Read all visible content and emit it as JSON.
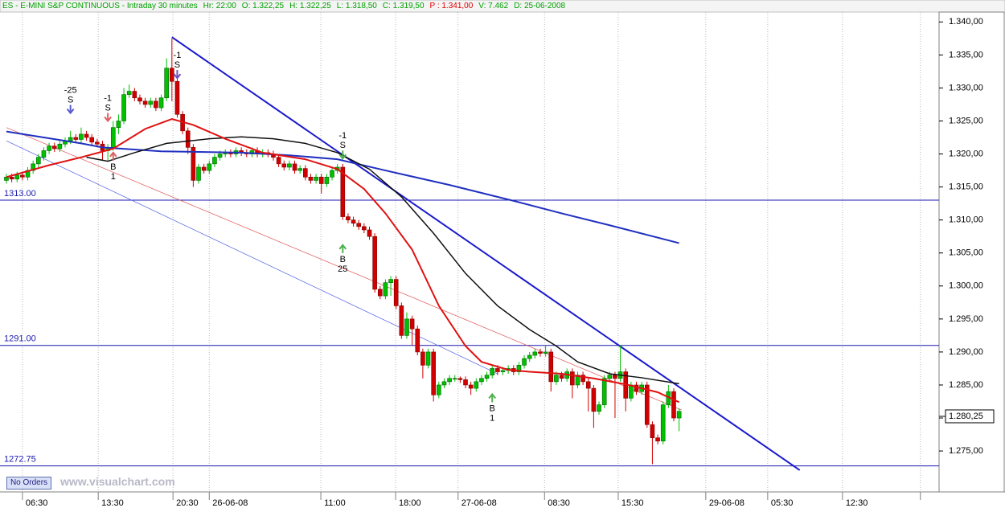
{
  "header": {
    "items": [
      "ES - E-MINI S&P CONTINUOUS - Intraday 30 minutes",
      "Hr: 22:00",
      "O: 1.322,25",
      "H: 1.322,25",
      "L: 1.318,50",
      "C: 1.319,50",
      "P : 1.341,00",
      "V: 7.462",
      "D: 25-06-2008"
    ]
  },
  "footer": {
    "button": "No Orders",
    "watermark": "www.visualchart.com"
  },
  "chart_data": {
    "type": "candlestick",
    "up_color": "#00c000",
    "down_color": "#d00000",
    "x": [
      0,
      1,
      2,
      3,
      4,
      5,
      6,
      7,
      8,
      9,
      10,
      11,
      12,
      13,
      14,
      15,
      16,
      17,
      18,
      19,
      20,
      21,
      22,
      23,
      24,
      25,
      26,
      27,
      28,
      29,
      30,
      31,
      32,
      33,
      34,
      35,
      36,
      37,
      38,
      39,
      40,
      41,
      42,
      43,
      44,
      45,
      46,
      47,
      48,
      49,
      50,
      51,
      52,
      53,
      54,
      55,
      56,
      57,
      58,
      59,
      60,
      61,
      62,
      63,
      64,
      65,
      66,
      67,
      68,
      69,
      70,
      71,
      72,
      73,
      74,
      75,
      76,
      77,
      78,
      79,
      80,
      81,
      82,
      83,
      84,
      85,
      86,
      87,
      88,
      89,
      90,
      91,
      92,
      93,
      94,
      95,
      96,
      97,
      98,
      99,
      100,
      101,
      102,
      103,
      104,
      105,
      106,
      107,
      108,
      109,
      110,
      111,
      112,
      113,
      114,
      115,
      116,
      117,
      118,
      119,
      120,
      121,
      122,
      123,
      124,
      125,
      126
    ],
    "open": [
      1316,
      1316.5,
      1316.2,
      1316.8,
      1316.5,
      1317.5,
      1318.5,
      1319.5,
      1320.5,
      1321.2,
      1320.8,
      1321.5,
      1322,
      1322.5,
      1322.2,
      1323,
      1322.5,
      1321.8,
      1321.5,
      1320.5,
      1321,
      1324,
      1325,
      1329,
      1329.5,
      1328.5,
      1328,
      1327.5,
      1328,
      1327,
      1328.5,
      1333,
      1331,
      1326,
      1323.5,
      1321,
      1316,
      1318,
      1317.5,
      1318.5,
      1319.5,
      1320,
      1320.2,
      1320,
      1320.5,
      1320.2,
      1320,
      1320.5,
      1320,
      1320.2,
      1320,
      1319.5,
      1318.5,
      1318,
      1318.5,
      1317.5,
      1317.8,
      1316.5,
      1316,
      1316.5,
      1315.5,
      1316.5,
      1317.5,
      1318,
      1310.5,
      1310,
      1309.5,
      1309,
      1308.5,
      1307.5,
      1299.5,
      1298.5,
      1300.5,
      1301,
      1297,
      1292.5,
      1295,
      1293.5,
      1290,
      1288,
      1290,
      1283.5,
      1285,
      1285.5,
      1286,
      1286,
      1285.8,
      1285,
      1284.5,
      1285.5,
      1286,
      1286.5,
      1287.5,
      1287,
      1287.2,
      1287.5,
      1287,
      1288,
      1289,
      1289.5,
      1290,
      1289.8,
      1290,
      1285.5,
      1286.5,
      1286,
      1287,
      1285,
      1286.5,
      1285.5,
      1284.5,
      1281,
      1282,
      1286,
      1286.5,
      1286,
      1287,
      1283,
      1285,
      1284,
      1285,
      1279,
      1277,
      1276.5,
      1282,
      1284,
      1280
    ],
    "high": [
      1317,
      1317,
      1317.3,
      1317.3,
      1318,
      1319,
      1320,
      1321,
      1321.7,
      1321.7,
      1322,
      1322.5,
      1323.5,
      1323,
      1324,
      1323.5,
      1323,
      1322.3,
      1322,
      1321.5,
      1325,
      1326,
      1330,
      1330.5,
      1330,
      1329,
      1328.5,
      1328.5,
      1328.5,
      1329,
      1334.5,
      1337.5,
      1331.5,
      1326.5,
      1324,
      1321.5,
      1318.5,
      1318.5,
      1319,
      1320,
      1320.5,
      1320.7,
      1320.7,
      1321,
      1321,
      1320.7,
      1321,
      1321,
      1320.7,
      1320.7,
      1320.5,
      1320,
      1319,
      1319,
      1319,
      1318.3,
      1318.3,
      1317,
      1317,
      1317,
      1317,
      1318,
      1318.5,
      1318.5,
      1311,
      1310.5,
      1310,
      1309.5,
      1309,
      1308,
      1300,
      1301,
      1301.5,
      1301.5,
      1297.5,
      1296,
      1295.5,
      1294,
      1290.5,
      1290.5,
      1290.5,
      1285.5,
      1286,
      1286.5,
      1286.5,
      1286.3,
      1286.3,
      1285.5,
      1286,
      1286.5,
      1287,
      1288,
      1288,
      1287.7,
      1288,
      1288,
      1288.5,
      1289.5,
      1290,
      1290.5,
      1290.5,
      1291,
      1290.5,
      1287,
      1287,
      1287.5,
      1287.5,
      1287,
      1287,
      1286,
      1285,
      1282.5,
      1286.5,
      1287,
      1287,
      1291,
      1287.5,
      1285.5,
      1285.5,
      1285.5,
      1285.5,
      1279.5,
      1277.5,
      1282.5,
      1285,
      1284.5,
      1281.5
    ],
    "low": [
      1315.5,
      1315.7,
      1315.7,
      1316,
      1316,
      1317,
      1318,
      1319,
      1320,
      1320.3,
      1320.3,
      1321,
      1321.5,
      1321.7,
      1321.7,
      1322,
      1321.3,
      1321,
      1319,
      1319,
      1320.5,
      1323,
      1324.5,
      1328.5,
      1328,
      1327.5,
      1327,
      1327,
      1326.5,
      1326.5,
      1328,
      1328,
      1325.5,
      1323,
      1320,
      1315,
      1315.5,
      1317,
      1317,
      1318,
      1319,
      1319.5,
      1319.5,
      1319.5,
      1319.7,
      1319.5,
      1319.5,
      1319.5,
      1319.5,
      1319.5,
      1319,
      1318,
      1317.5,
      1317.5,
      1317,
      1317,
      1316,
      1315.5,
      1315.5,
      1314,
      1315,
      1316,
      1317,
      1310,
      1309.5,
      1309,
      1308.5,
      1308,
      1307,
      1299,
      1298,
      1298,
      1298.5,
      1296.5,
      1292,
      1292,
      1291,
      1289.5,
      1286,
      1287.5,
      1282.5,
      1283,
      1284.5,
      1285,
      1285.5,
      1285.3,
      1284.5,
      1283.5,
      1284,
      1285,
      1285.5,
      1286,
      1286.5,
      1286.5,
      1286.7,
      1286.5,
      1286.5,
      1287.5,
      1288.5,
      1289,
      1289.3,
      1289.3,
      1284,
      1285,
      1285.5,
      1285.5,
      1283,
      1284.5,
      1285,
      1281,
      1278.5,
      1280.5,
      1281.5,
      1285.5,
      1280,
      1285.5,
      1281,
      1282.5,
      1283.5,
      1283.5,
      1278.5,
      1273,
      1276,
      1276,
      1281.5,
      1279.5,
      1278
    ],
    "close": [
      1316.5,
      1316.2,
      1316.8,
      1316.5,
      1317.5,
      1318.5,
      1319.5,
      1320.5,
      1321.2,
      1320.8,
      1321.5,
      1322,
      1322.5,
      1322.2,
      1323,
      1322.5,
      1321.8,
      1321.5,
      1320.5,
      1321,
      1324,
      1325,
      1329,
      1329.5,
      1328.5,
      1328,
      1327.5,
      1328,
      1327,
      1328.5,
      1333,
      1331,
      1326,
      1323.5,
      1321,
      1316,
      1318,
      1317.5,
      1318.5,
      1319.5,
      1320,
      1320.2,
      1320,
      1320.5,
      1320.2,
      1320,
      1320.5,
      1320,
      1320.2,
      1320,
      1319.5,
      1318.5,
      1318,
      1318.5,
      1317.5,
      1317.8,
      1316.5,
      1316,
      1316.5,
      1315.5,
      1316.5,
      1317.5,
      1318,
      1310.5,
      1310,
      1309.5,
      1309,
      1308.5,
      1307.5,
      1299.5,
      1298.5,
      1300.5,
      1301,
      1297,
      1292.5,
      1295,
      1293.5,
      1290,
      1288,
      1290,
      1283.5,
      1285,
      1285.5,
      1286,
      1286,
      1285.8,
      1285,
      1284.5,
      1285.5,
      1286,
      1286.5,
      1287.5,
      1287,
      1287.2,
      1287.5,
      1287,
      1288,
      1289,
      1289.5,
      1290,
      1289.8,
      1290,
      1285.5,
      1286.5,
      1286,
      1287,
      1285,
      1286.5,
      1285.5,
      1284.5,
      1281,
      1282,
      1286,
      1286.5,
      1286,
      1287,
      1283,
      1285,
      1284,
      1285,
      1279,
      1277,
      1276.5,
      1282,
      1284,
      1280,
      1281
    ],
    "series": [
      {
        "color": "#2030c0",
        "width": 2,
        "x": [
          0,
          14,
          18,
          29,
          44,
          53,
          62,
          71,
          83,
          95,
          104,
          113,
          126
        ],
        "values": [
          1323.4,
          1321.6,
          1321,
          1320.4,
          1320.2,
          1319.8,
          1319.2,
          1317.5,
          1315.3,
          1312.9,
          1311,
          1309.2,
          1306.5
        ]
      },
      {
        "color": "#101010",
        "width": 1.5,
        "x": [
          15,
          19,
          24,
          30,
          38,
          44,
          50,
          56,
          62,
          68,
          74,
          80,
          86,
          92,
          98,
          103,
          107,
          113,
          119,
          126
        ],
        "values": [
          1319.5,
          1318.9,
          1320.2,
          1321.6,
          1322.3,
          1322.6,
          1322.3,
          1321.6,
          1320.2,
          1317.7,
          1313.5,
          1308,
          1301.9,
          1297,
          1293.4,
          1290.9,
          1288.5,
          1286.7,
          1286.1,
          1285.2
        ]
      },
      {
        "color": "#e01010",
        "width": 2,
        "x": [
          0,
          8,
          14,
          20,
          26,
          31,
          35,
          41,
          48,
          56,
          62,
          67,
          71,
          76,
          81,
          86,
          89,
          94,
          98,
          104,
          110,
          116,
          122,
          126
        ],
        "values": [
          1316.5,
          1318.3,
          1319.5,
          1320.8,
          1323.8,
          1325.3,
          1324.4,
          1322.3,
          1320.2,
          1319.2,
          1317.7,
          1314.7,
          1311,
          1305.5,
          1297,
          1290.9,
          1288.5,
          1287.3,
          1287,
          1286.7,
          1286,
          1285.1,
          1283.9,
          1282.4
        ]
      }
    ],
    "trendlines": [
      {
        "color": "#1a1acc",
        "width": 2,
        "x": [
          31,
          148.6
        ],
        "values": [
          1337.7,
          1272.1
        ]
      },
      {
        "color": "#4a5ae0",
        "width": 0.7,
        "x": [
          0,
          92
        ],
        "values": [
          1322,
          1286.7
        ]
      },
      {
        "color": "#e05050",
        "width": 0.7,
        "x": [
          0,
          126.5
        ],
        "values": [
          1324,
          1281.2
        ]
      }
    ],
    "hlines": [
      {
        "value": 1313,
        "label": "1313.00",
        "color": "#1a1ab0"
      },
      {
        "value": 1291,
        "label": "1291.00",
        "color": "#1a1ab0"
      },
      {
        "value": 1272.75,
        "label": "1272.75",
        "color": "#1a1ab0"
      }
    ],
    "signals": [
      {
        "x": 12,
        "y": 1326.2,
        "dir": "down",
        "color": "#5a5acc",
        "texts": [
          "-25",
          "S"
        ]
      },
      {
        "x": 19,
        "y": 1325,
        "dir": "down",
        "color": "#e06060",
        "texts": [
          "-1",
          "S"
        ]
      },
      {
        "x": 20,
        "y": 1320.2,
        "dir": "up",
        "color": "#e06060",
        "texts": [
          "B",
          "1"
        ]
      },
      {
        "x": 32,
        "y": 1331.5,
        "dir": "down",
        "color": "#7050c0",
        "texts": [
          "-1",
          "S"
        ]
      },
      {
        "x": 63,
        "y": 1319.3,
        "dir": "down",
        "color": "#50b050",
        "texts": [
          "-1",
          "S"
        ]
      },
      {
        "x": 63,
        "y": 1306.2,
        "dir": "up",
        "color": "#50b050",
        "texts": [
          "B",
          "25"
        ]
      },
      {
        "x": 91,
        "y": 1283.6,
        "dir": "up",
        "color": "#50b050",
        "texts": [
          "B",
          "1"
        ]
      }
    ],
    "last_price": {
      "value": 1280.25,
      "label": "1.280,25"
    },
    "xlim": [
      -1.2,
      174.7
    ],
    "ylim": [
      1268.8,
      1341.5
    ],
    "grid": true,
    "xticks": [
      {
        "value": 3,
        "label": "06:30"
      },
      {
        "value": 17.2,
        "label": "13:30"
      },
      {
        "value": 31.2,
        "label": "20:30"
      },
      {
        "value": 38,
        "label": "26-06-08"
      },
      {
        "value": 58.9,
        "label": "11:00"
      },
      {
        "value": 72.9,
        "label": "18:00"
      },
      {
        "value": 84.6,
        "label": "27-06-08"
      },
      {
        "value": 100.8,
        "label": "08:30"
      },
      {
        "value": 114.6,
        "label": "15:30"
      },
      {
        "value": 131,
        "label": "29-06-08"
      },
      {
        "value": 142.6,
        "label": "05:30"
      },
      {
        "value": 156.6,
        "label": "12:30"
      },
      {
        "value": 171.2,
        "label": ""
      }
    ],
    "yticks": [
      {
        "value": 1275,
        "label": "1.275,00"
      },
      {
        "value": 1280,
        "label": "1.280,00"
      },
      {
        "value": 1285,
        "label": "1.285,00"
      },
      {
        "value": 1290,
        "label": "1.290,00"
      },
      {
        "value": 1295,
        "label": "1.295,00"
      },
      {
        "value": 1300,
        "label": "1.300,00"
      },
      {
        "value": 1305,
        "label": "1.305,00"
      },
      {
        "value": 1310,
        "label": "1.310,00"
      },
      {
        "value": 1315,
        "label": "1.315,00"
      },
      {
        "value": 1320,
        "label": "1.320,00"
      },
      {
        "value": 1325,
        "label": "1.325,00"
      },
      {
        "value": 1330,
        "label": "1.330,00"
      },
      {
        "value": 1335,
        "label": "1.335,00"
      },
      {
        "value": 1340,
        "label": "1.340,00"
      }
    ]
  }
}
